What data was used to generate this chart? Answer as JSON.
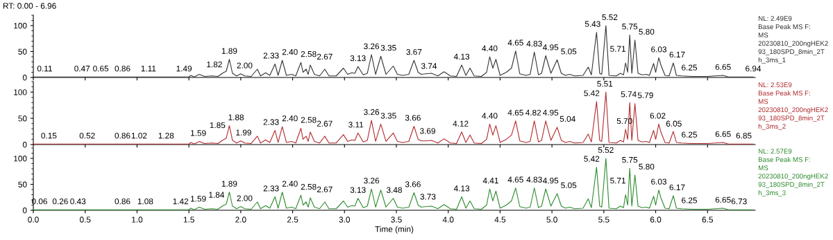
{
  "chart_data": [
    {
      "type": "line",
      "title": "RT: 0.00 - 6.96",
      "xlim": [
        0,
        6.96
      ],
      "ylim": [
        0,
        120
      ],
      "yticks": [
        0,
        50,
        100
      ],
      "tick_labels": "y",
      "xticks": [
        0,
        0.5,
        1,
        1.5,
        2,
        2.5,
        3,
        3.5,
        4,
        4.5,
        5,
        5.5,
        6,
        6.5
      ],
      "series": [
        {
          "color": "#333333",
          "x": [
            0,
            1.5,
            1.52,
            1.55,
            1.6,
            1.65,
            1.72,
            1.78,
            1.83,
            1.86,
            1.89,
            1.92,
            1.96,
            2.0,
            2.04,
            2.1,
            2.16,
            2.19,
            2.24,
            2.28,
            2.33,
            2.36,
            2.4,
            2.44,
            2.49,
            2.53,
            2.58,
            2.6,
            2.63,
            2.65,
            2.67,
            2.71,
            2.76,
            2.81,
            2.85,
            2.92,
            2.99,
            3.03,
            3.07,
            3.1,
            3.13,
            3.18,
            3.22,
            3.26,
            3.3,
            3.35,
            3.4,
            3.47,
            3.51,
            3.56,
            3.62,
            3.67,
            3.71,
            3.74,
            3.78,
            3.84,
            3.9,
            3.96,
            4.02,
            4.08,
            4.13,
            4.17,
            4.21,
            4.25,
            4.32,
            4.37,
            4.4,
            4.43,
            4.46,
            4.5,
            4.56,
            4.61,
            4.65,
            4.69,
            4.75,
            4.79,
            4.83,
            4.87,
            4.9,
            4.94,
            4.99,
            5.05,
            5.09,
            5.13,
            5.17,
            5.22,
            5.3,
            5.35,
            5.38,
            5.43,
            5.46,
            5.48,
            5.52,
            5.55,
            5.62,
            5.66,
            5.69,
            5.71,
            5.73,
            5.75,
            5.77,
            5.8,
            5.83,
            5.87,
            5.91,
            5.94,
            5.98,
            6.0,
            6.03,
            6.05,
            6.09,
            6.13,
            6.17,
            6.2,
            6.25,
            6.35,
            6.5,
            6.65,
            6.7,
            6.94
          ],
          "values": [
            1,
            1,
            4,
            1,
            6,
            2,
            3,
            2,
            9,
            12,
            35,
            8,
            3,
            7,
            3,
            2,
            16,
            3,
            9,
            4,
            26,
            4,
            33,
            4,
            6,
            3,
            29,
            10,
            16,
            6,
            24,
            6,
            3,
            16,
            3,
            3,
            18,
            6,
            9,
            8,
            21,
            5,
            8,
            44,
            6,
            41,
            6,
            22,
            6,
            4,
            6,
            33,
            10,
            6,
            7,
            8,
            3,
            11,
            3,
            2,
            24,
            4,
            18,
            3,
            2,
            10,
            40,
            18,
            35,
            4,
            10,
            18,
            51,
            7,
            4,
            6,
            49,
            5,
            8,
            42,
            8,
            34,
            8,
            4,
            6,
            3,
            4,
            20,
            5,
            87,
            8,
            6,
            100,
            4,
            3,
            8,
            5,
            28,
            10,
            82,
            8,
            72,
            8,
            5,
            6,
            4,
            27,
            10,
            38,
            24,
            4,
            3,
            28,
            4,
            3,
            2,
            2,
            4,
            1,
            1
          ]
        }
      ],
      "annotations": [
        {
          "text": "0.11",
          "x": 0.11,
          "y": 1
        },
        {
          "text": "0.47",
          "x": 0.47,
          "y": 1
        },
        {
          "text": "0.65",
          "x": 0.65,
          "y": 1
        },
        {
          "text": "0.86",
          "x": 0.86,
          "y": 1
        },
        {
          "text": "1.11",
          "x": 1.11,
          "y": 1
        },
        {
          "text": "1.49",
          "x": 1.49,
          "y": 1
        },
        {
          "text": "1.82",
          "x": 1.82,
          "y": 9
        },
        {
          "text": "1.89",
          "x": 1.89,
          "y": 35
        },
        {
          "text": "2.00",
          "x": 2.0,
          "y": 7
        },
        {
          "text": "2.33",
          "x": 2.33,
          "y": 26
        },
        {
          "text": "2.40",
          "x": 2.4,
          "y": 33
        },
        {
          "text": "2.58",
          "x": 2.58,
          "y": 29
        },
        {
          "text": "2.67",
          "x": 2.67,
          "y": 24
        },
        {
          "text": "3.13",
          "x": 3.13,
          "y": 21
        },
        {
          "text": "3.26",
          "x": 3.26,
          "y": 44
        },
        {
          "text": "3.35",
          "x": 3.35,
          "y": 41
        },
        {
          "text": "3.67",
          "x": 3.67,
          "y": 33
        },
        {
          "text": "3.74",
          "x": 3.74,
          "y": 6
        },
        {
          "text": "4.13",
          "x": 4.13,
          "y": 24
        },
        {
          "text": "4.40",
          "x": 4.4,
          "y": 40
        },
        {
          "text": "4.65",
          "x": 4.65,
          "y": 51
        },
        {
          "text": "4.83",
          "x": 4.83,
          "y": 49
        },
        {
          "text": "4.95",
          "x": 4.95,
          "y": 42
        },
        {
          "text": "5.05",
          "x": 5.05,
          "y": 34
        },
        {
          "text": "5.43",
          "x": 5.43,
          "y": 87
        },
        {
          "text": "5.52",
          "x": 5.52,
          "y": 100
        },
        {
          "text": "5.71",
          "x": 5.71,
          "y": 28
        },
        {
          "text": "5.75",
          "x": 5.75,
          "y": 82
        },
        {
          "text": "5.80",
          "x": 5.8,
          "y": 72
        },
        {
          "text": "6.03",
          "x": 6.03,
          "y": 38
        },
        {
          "text": "6.17",
          "x": 6.17,
          "y": 28
        },
        {
          "text": "6.25",
          "x": 6.25,
          "y": 3
        },
        {
          "text": "6.65",
          "x": 6.65,
          "y": 4
        },
        {
          "text": "6.94",
          "x": 6.94,
          "y": 1
        },
        "NL: 2.49E9",
        "Base Peak MS F:",
        "MS",
        "20230810_200ngHEK2",
        "93_180SPD_8min_2T",
        "h_3ms_1"
      ]
    },
    {
      "type": "line",
      "xlim": [
        0,
        6.96
      ],
      "ylim": [
        0,
        120
      ],
      "yticks": [
        0,
        50,
        100
      ],
      "tick_labels": "y",
      "xticks": [
        0,
        0.5,
        1,
        1.5,
        2,
        2.5,
        3,
        3.5,
        4,
        4.5,
        5,
        5.5,
        6,
        6.5
      ],
      "series": [
        {
          "color": "#b22a2e",
          "x": [
            0,
            1.5,
            1.52,
            1.55,
            1.6,
            1.65,
            1.72,
            1.78,
            1.83,
            1.86,
            1.89,
            1.92,
            1.96,
            2.0,
            2.04,
            2.1,
            2.16,
            2.19,
            2.24,
            2.28,
            2.33,
            2.36,
            2.4,
            2.44,
            2.49,
            2.53,
            2.58,
            2.6,
            2.63,
            2.65,
            2.67,
            2.71,
            2.76,
            2.81,
            2.85,
            2.92,
            2.99,
            3.03,
            3.07,
            3.1,
            3.13,
            3.18,
            3.22,
            3.26,
            3.3,
            3.35,
            3.4,
            3.47,
            3.51,
            3.56,
            3.62,
            3.67,
            3.71,
            3.74,
            3.78,
            3.84,
            3.9,
            3.96,
            4.02,
            4.08,
            4.13,
            4.17,
            4.21,
            4.25,
            4.32,
            4.37,
            4.4,
            4.43,
            4.46,
            4.5,
            4.56,
            4.61,
            4.65,
            4.69,
            4.75,
            4.79,
            4.83,
            4.87,
            4.9,
            4.94,
            4.99,
            5.05,
            5.09,
            5.13,
            5.17,
            5.22,
            5.3,
            5.35,
            5.38,
            5.43,
            5.46,
            5.48,
            5.52,
            5.55,
            5.62,
            5.66,
            5.69,
            5.71,
            5.73,
            5.75,
            5.77,
            5.8,
            5.83,
            5.87,
            5.91,
            5.94,
            5.98,
            6.0,
            6.03,
            6.05,
            6.09,
            6.13,
            6.17,
            6.2,
            6.25,
            6.35,
            6.5,
            6.65,
            6.7,
            6.94
          ],
          "values": [
            1,
            1,
            4,
            1,
            6,
            2,
            3,
            2,
            9,
            12,
            36,
            8,
            3,
            7,
            3,
            2,
            16,
            3,
            9,
            4,
            27,
            4,
            34,
            4,
            6,
            3,
            31,
            10,
            16,
            6,
            24,
            6,
            3,
            16,
            3,
            3,
            19,
            6,
            9,
            8,
            22,
            5,
            8,
            46,
            6,
            39,
            6,
            22,
            6,
            4,
            6,
            35,
            10,
            7,
            7,
            8,
            3,
            11,
            3,
            2,
            24,
            4,
            18,
            3,
            2,
            10,
            39,
            18,
            36,
            4,
            10,
            18,
            45,
            7,
            4,
            6,
            45,
            5,
            8,
            45,
            8,
            33,
            8,
            4,
            6,
            3,
            4,
            20,
            5,
            82,
            8,
            6,
            100,
            4,
            3,
            8,
            5,
            29,
            10,
            80,
            8,
            78,
            8,
            5,
            6,
            4,
            27,
            10,
            39,
            24,
            4,
            3,
            25,
            4,
            3,
            2,
            2,
            4,
            1,
            1
          ]
        }
      ],
      "annotations": [
        {
          "text": "0.15",
          "x": 0.15,
          "y": 1
        },
        {
          "text": "0.52",
          "x": 0.52,
          "y": 1
        },
        {
          "text": "0.86",
          "x": 0.86,
          "y": 1
        },
        {
          "text": "1.02",
          "x": 1.02,
          "y": 1
        },
        {
          "text": "1.28",
          "x": 1.28,
          "y": 1
        },
        {
          "text": "1.59",
          "x": 1.59,
          "y": 6
        },
        {
          "text": "1.85",
          "x": 1.85,
          "y": 10
        },
        {
          "text": "1.88",
          "x": 1.88,
          "y": 36
        },
        {
          "text": "1.99",
          "x": 1.99,
          "y": 7
        },
        {
          "text": "2.33",
          "x": 2.33,
          "y": 27
        },
        {
          "text": "2.40",
          "x": 2.4,
          "y": 34
        },
        {
          "text": "2.58",
          "x": 2.58,
          "y": 31
        },
        {
          "text": "2.67",
          "x": 2.67,
          "y": 24
        },
        {
          "text": "3.11",
          "x": 3.11,
          "y": 22
        },
        {
          "text": "3.26",
          "x": 3.26,
          "y": 46
        },
        {
          "text": "3.35",
          "x": 3.35,
          "y": 39
        },
        {
          "text": "3.66",
          "x": 3.66,
          "y": 35
        },
        {
          "text": "3.69",
          "x": 3.69,
          "y": 10
        },
        {
          "text": "4.12",
          "x": 4.12,
          "y": 24
        },
        {
          "text": "4.40",
          "x": 4.4,
          "y": 39
        },
        {
          "text": "4.65",
          "x": 4.65,
          "y": 45
        },
        {
          "text": "4.82",
          "x": 4.82,
          "y": 45
        },
        {
          "text": "4.95",
          "x": 4.95,
          "y": 45
        },
        {
          "text": "5.04",
          "x": 5.04,
          "y": 33
        },
        {
          "text": "5.42",
          "x": 5.42,
          "y": 82
        },
        {
          "text": "5.51",
          "x": 5.51,
          "y": 100
        },
        {
          "text": "5.70",
          "x": 5.7,
          "y": 29
        },
        {
          "text": "5.74",
          "x": 5.74,
          "y": 80
        },
        {
          "text": "5.79",
          "x": 5.79,
          "y": 78
        },
        {
          "text": "6.02",
          "x": 6.02,
          "y": 39
        },
        {
          "text": "6.05",
          "x": 6.05,
          "y": 24
        },
        {
          "text": "6.25",
          "x": 6.25,
          "y": 3
        },
        {
          "text": "6.65",
          "x": 6.65,
          "y": 4
        },
        {
          "text": "6.85",
          "x": 6.85,
          "y": 1
        },
        "NL: 2.53E9",
        "Base Peak MS F:",
        "MS",
        "20230810_200ngHEK2",
        "93_180SPD_8min_2T",
        "h_3ms_2"
      ]
    },
    {
      "type": "line",
      "xlabel": "Time (min)",
      "xlim": [
        0,
        6.96
      ],
      "ylim": [
        0,
        120
      ],
      "yticks": [
        0,
        50,
        100
      ],
      "xticks": [
        {
          "value": 0,
          "label": "0.0"
        },
        {
          "value": 0.5,
          "label": "0.5"
        },
        {
          "value": 1,
          "label": "1.0"
        },
        {
          "value": 1.5,
          "label": "1.5"
        },
        {
          "value": 2,
          "label": "2.0"
        },
        {
          "value": 2.5,
          "label": "2.5"
        },
        {
          "value": 3,
          "label": "3.0"
        },
        {
          "value": 3.5,
          "label": "3.5"
        },
        {
          "value": 4,
          "label": "4.0"
        },
        {
          "value": 4.5,
          "label": "4.5"
        },
        {
          "value": 5,
          "label": "5.0"
        },
        {
          "value": 5.5,
          "label": "5.5"
        },
        {
          "value": 6,
          "label": "6.0"
        },
        {
          "value": 6.5,
          "label": "6.5"
        }
      ],
      "series": [
        {
          "color": "#2e8b2e",
          "x": [
            0,
            1.5,
            1.52,
            1.55,
            1.6,
            1.65,
            1.72,
            1.78,
            1.83,
            1.86,
            1.89,
            1.92,
            1.96,
            2.0,
            2.04,
            2.1,
            2.16,
            2.19,
            2.24,
            2.28,
            2.33,
            2.36,
            2.4,
            2.44,
            2.49,
            2.53,
            2.58,
            2.6,
            2.63,
            2.65,
            2.67,
            2.71,
            2.76,
            2.81,
            2.85,
            2.92,
            2.99,
            3.03,
            3.07,
            3.1,
            3.13,
            3.18,
            3.22,
            3.26,
            3.3,
            3.35,
            3.4,
            3.47,
            3.51,
            3.56,
            3.62,
            3.67,
            3.71,
            3.74,
            3.78,
            3.84,
            3.9,
            3.96,
            4.02,
            4.08,
            4.13,
            4.17,
            4.21,
            4.25,
            4.32,
            4.37,
            4.4,
            4.43,
            4.46,
            4.5,
            4.56,
            4.61,
            4.65,
            4.69,
            4.75,
            4.79,
            4.83,
            4.87,
            4.9,
            4.94,
            4.99,
            5.05,
            5.09,
            5.13,
            5.17,
            5.22,
            5.3,
            5.35,
            5.38,
            5.43,
            5.46,
            5.48,
            5.52,
            5.55,
            5.62,
            5.66,
            5.69,
            5.71,
            5.73,
            5.75,
            5.77,
            5.8,
            5.83,
            5.87,
            5.91,
            5.94,
            5.98,
            6.0,
            6.03,
            6.05,
            6.09,
            6.13,
            6.17,
            6.2,
            6.25,
            6.35,
            6.5,
            6.65,
            6.7,
            6.94
          ],
          "values": [
            1,
            1,
            4,
            1,
            6,
            2,
            3,
            2,
            9,
            12,
            35,
            8,
            3,
            7,
            3,
            2,
            16,
            3,
            9,
            4,
            26,
            4,
            35,
            4,
            6,
            3,
            29,
            10,
            16,
            6,
            24,
            6,
            3,
            16,
            3,
            3,
            18,
            6,
            9,
            8,
            23,
            5,
            8,
            41,
            6,
            39,
            6,
            23,
            6,
            4,
            6,
            34,
            10,
            6,
            7,
            8,
            3,
            11,
            3,
            2,
            26,
            4,
            18,
            3,
            2,
            10,
            41,
            18,
            37,
            4,
            10,
            18,
            43,
            7,
            4,
            6,
            43,
            5,
            8,
            41,
            8,
            32,
            8,
            4,
            6,
            3,
            4,
            22,
            5,
            83,
            8,
            6,
            100,
            4,
            3,
            8,
            5,
            30,
            10,
            81,
            8,
            68,
            8,
            5,
            6,
            4,
            27,
            10,
            39,
            24,
            4,
            3,
            28,
            4,
            3,
            2,
            2,
            4,
            1,
            1
          ]
        }
      ],
      "annotations": [
        {
          "text": "0.06",
          "x": 0.06,
          "y": 1
        },
        {
          "text": "0.26",
          "x": 0.26,
          "y": 1
        },
        {
          "text": "0.43",
          "x": 0.43,
          "y": 1
        },
        {
          "text": "0.86",
          "x": 0.86,
          "y": 1
        },
        {
          "text": "1.08",
          "x": 1.08,
          "y": 1
        },
        {
          "text": "1.42",
          "x": 1.42,
          "y": 1
        },
        {
          "text": "1.59",
          "x": 1.59,
          "y": 6
        },
        {
          "text": "1.84",
          "x": 1.84,
          "y": 10
        },
        {
          "text": "1.89",
          "x": 1.89,
          "y": 35
        },
        {
          "text": "2.00",
          "x": 2.0,
          "y": 7
        },
        {
          "text": "2.33",
          "x": 2.33,
          "y": 26
        },
        {
          "text": "2.40",
          "x": 2.4,
          "y": 35
        },
        {
          "text": "2.58",
          "x": 2.58,
          "y": 29
        },
        {
          "text": "2.67",
          "x": 2.67,
          "y": 24
        },
        {
          "text": "3.13",
          "x": 3.13,
          "y": 23
        },
        {
          "text": "3.26",
          "x": 3.26,
          "y": 41
        },
        {
          "text": "3.48",
          "x": 3.48,
          "y": 23
        },
        {
          "text": "3.66",
          "x": 3.66,
          "y": 34
        },
        {
          "text": "3.73",
          "x": 3.73,
          "y": 10
        },
        {
          "text": "4.13",
          "x": 4.13,
          "y": 26
        },
        {
          "text": "4.41",
          "x": 4.41,
          "y": 41
        },
        {
          "text": "4.65",
          "x": 4.65,
          "y": 43
        },
        {
          "text": "4.83",
          "x": 4.83,
          "y": 43
        },
        {
          "text": "4.95",
          "x": 4.95,
          "y": 41
        },
        {
          "text": "5.05",
          "x": 5.05,
          "y": 32
        },
        {
          "text": "5.42",
          "x": 5.42,
          "y": 83
        },
        {
          "text": "5.52",
          "x": 5.52,
          "y": 100
        },
        {
          "text": "5.71",
          "x": 5.71,
          "y": 30
        },
        {
          "text": "5.75",
          "x": 5.75,
          "y": 81
        },
        {
          "text": "5.80",
          "x": 5.8,
          "y": 68
        },
        {
          "text": "6.03",
          "x": 6.03,
          "y": 39
        },
        {
          "text": "6.17",
          "x": 6.17,
          "y": 28
        },
        {
          "text": "6.25",
          "x": 6.25,
          "y": 3
        },
        {
          "text": "6.65",
          "x": 6.65,
          "y": 4
        },
        {
          "text": "6.73",
          "x": 6.73,
          "y": 1
        },
        "NL: 2.57E9",
        "Base Peak MS F:",
        "MS",
        "20230810_200ngHEK2",
        "93_180SPD_8min_2T",
        "h_3ms_3"
      ]
    }
  ]
}
